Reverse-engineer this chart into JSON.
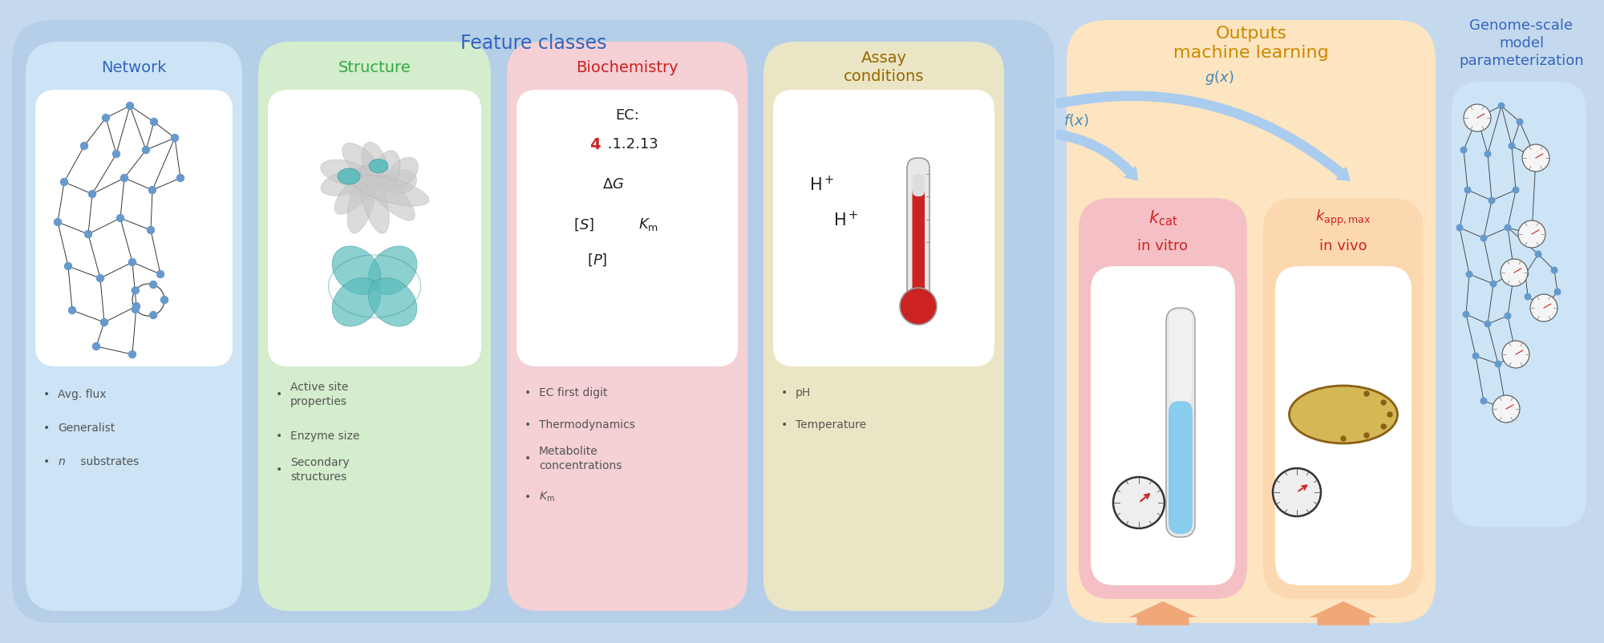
{
  "fig_width": 20.0,
  "fig_height": 8.02,
  "bg_outer": "#c5d9ee",
  "bg_feature_classes": "#b5cfe8",
  "bg_network": "#cce4f5",
  "bg_structure": "#d4edcc",
  "bg_biochemistry": "#f5d0d5",
  "bg_assay": "#eae6c5",
  "bg_outputs": "#fce5c0",
  "bg_genome": "#c5d9ee",
  "bg_kcat": "#f5c0c5",
  "bg_kapp": "#fcd8b0",
  "bg_white": "#ffffff",
  "color_network_title": "#3366bb",
  "color_structure_title": "#33aa44",
  "color_biochemistry_title": "#cc2222",
  "color_assay_title": "#996600",
  "color_outputs_title": "#cc8800",
  "color_genome_title": "#3366bb",
  "color_kcat": "#cc2222",
  "color_arrow": "#88bbdd",
  "color_arrow_fill": "#aaccee",
  "color_bullet": "#555555",
  "color_salmon": "#f0a878",
  "feature_classes_title": "Feature classes",
  "outputs_title": "Outputs\nmachine learning",
  "genome_title": "Genome-scale\nmodel\nparameterization",
  "network_title": "Network",
  "structure_title": "Structure",
  "biochemistry_title": "Biochemistry",
  "assay_title": "Assay\nconditions"
}
